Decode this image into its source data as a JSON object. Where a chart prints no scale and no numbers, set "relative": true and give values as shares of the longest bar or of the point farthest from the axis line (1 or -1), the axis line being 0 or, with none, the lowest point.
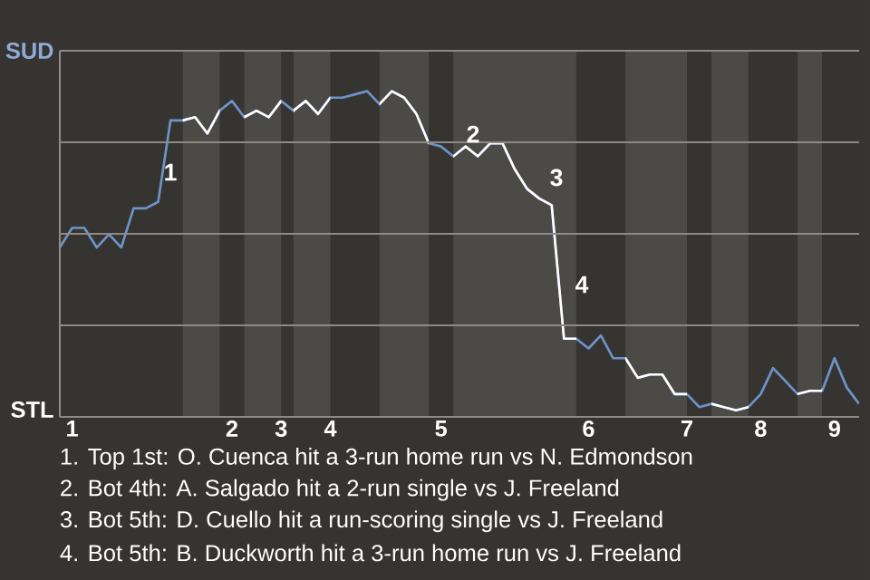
{
  "chart_data": {
    "type": "line",
    "categories": [
      null,
      "1",
      null,
      null,
      null,
      null,
      null,
      null,
      null,
      null,
      null,
      null,
      null,
      null,
      "2",
      null,
      null,
      null,
      "3",
      null,
      null,
      null,
      "4",
      null,
      null,
      null,
      null,
      null,
      null,
      null,
      null,
      "5",
      null,
      null,
      null,
      null,
      null,
      null,
      null,
      null,
      null,
      null,
      null,
      "6",
      null,
      null,
      null,
      null,
      null,
      null,
      null,
      "7",
      null,
      null,
      null,
      null,
      null,
      "8",
      null,
      null,
      null,
      null,
      null,
      "9",
      null,
      null
    ],
    "relative": true,
    "grid": "y",
    "series": [
      {
        "color": "#6f93c9",
        "values": [
          0.52,
          0.58,
          0.58,
          0.52,
          0.56,
          0.52,
          0.64,
          0.64,
          0.66,
          0.91,
          0.91,
          0.92,
          0.87,
          0.94,
          0.97,
          0.92,
          0.94,
          0.92,
          0.97,
          0.94,
          0.97,
          0.93,
          0.98,
          0.98,
          0.99,
          1,
          0.96,
          1,
          0.98,
          0.93,
          0.84,
          0.83,
          0.8,
          0.83,
          0.8,
          0.84,
          0.84,
          0.76,
          0.7,
          0.67,
          0.65,
          0.24,
          0.24,
          0.21,
          0.25,
          0.18,
          0.18,
          0.12,
          0.13,
          0.13,
          0.07,
          0.07,
          0.03,
          0.04,
          0.03,
          0.02,
          0.03,
          0.07,
          0.15,
          0.11,
          0.07,
          0.08,
          0.08,
          0.18,
          0.09,
          0.04
        ]
      }
    ],
    "annotations": [
      "1",
      "2",
      "3",
      "4",
      "SUD",
      "STL",
      "1. Top 1st: O. Cuenca hit a 3-run home run vs N. Edmondson",
      "2. Bot 4th: A. Salgado hit a 2-run single vs J. Freeland",
      "3. Bot 5th: D. Cuello hit a run-scoring single vs J. Freeland",
      "4. Bot 5th: B. Duckworth hit a 3-run home run vs J. Freeland"
    ]
  }
}
